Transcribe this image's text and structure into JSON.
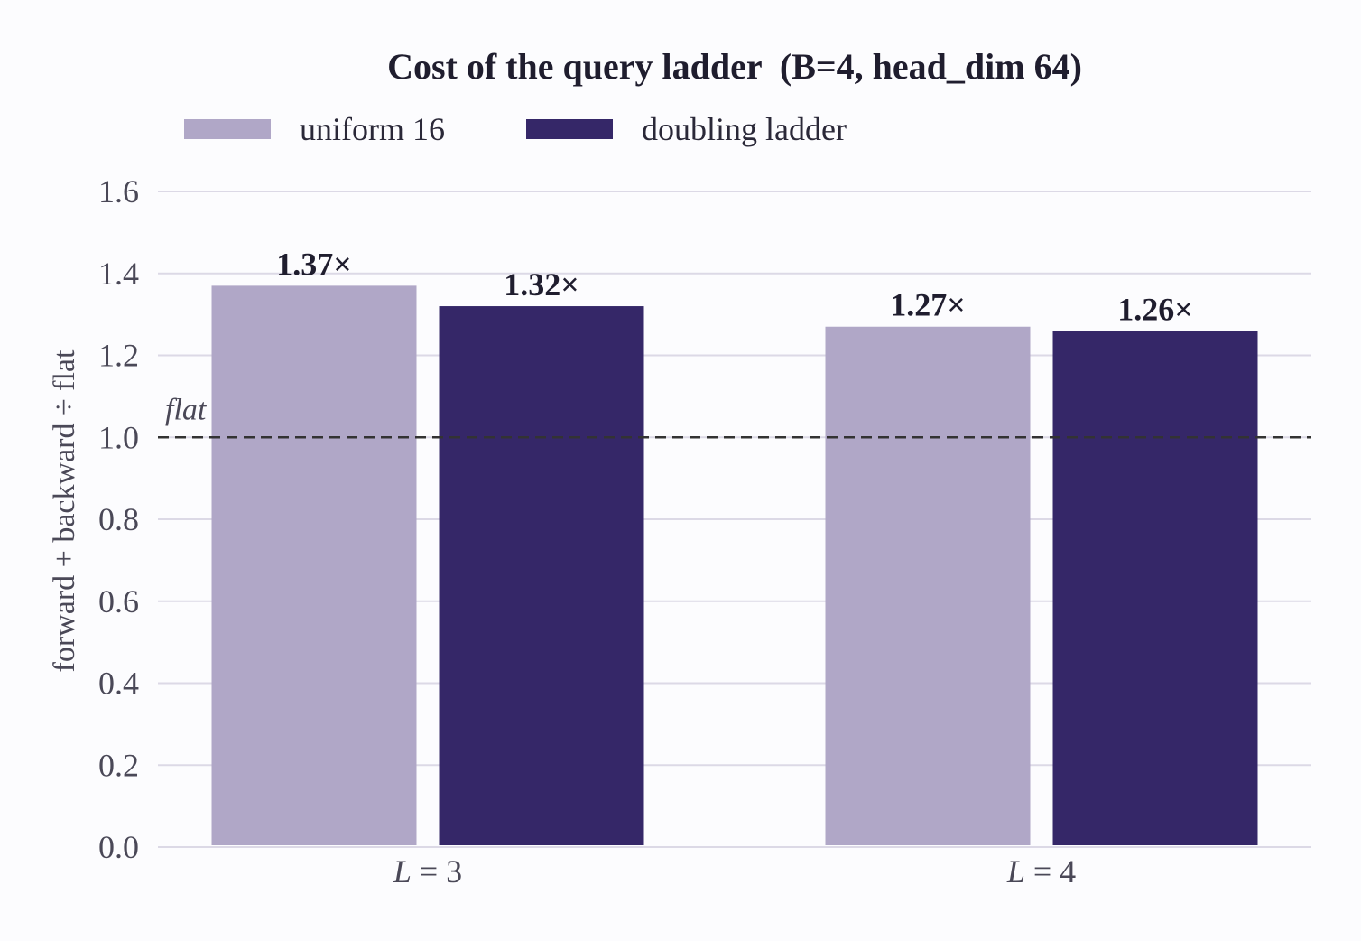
{
  "chart_data": {
    "type": "bar",
    "title": "Cost of the query ladder  (B=4, head_dim 64)",
    "xlabel": "",
    "ylabel": "forward + backward ÷ flat",
    "categories": [
      "L = 3",
      "L = 4"
    ],
    "category_parts": [
      {
        "var": "L",
        "eq": "= 3"
      },
      {
        "var": "L",
        "eq": "= 4"
      }
    ],
    "series": [
      {
        "name": "uniform 16",
        "color": "#b0a7c7",
        "values": [
          1.37,
          1.27
        ],
        "labels": [
          "1.37×",
          "1.27×"
        ]
      },
      {
        "name": "doubling ladder",
        "color": "#352768",
        "values": [
          1.32,
          1.26
        ],
        "labels": [
          "1.32×",
          "1.26×"
        ]
      }
    ],
    "ylim": [
      0,
      1.6
    ],
    "yticks": [
      0.0,
      0.2,
      0.4,
      0.6,
      0.8,
      1.0,
      1.2,
      1.4,
      1.6
    ],
    "ytick_labels": [
      "0.0",
      "0.2",
      "0.4",
      "0.6",
      "0.8",
      "1.0",
      "1.2",
      "1.4",
      "1.6"
    ],
    "reference_line": {
      "y": 1.0,
      "label": "flat",
      "style": "dashed"
    },
    "grid": true,
    "legend": "top-left, horizontal"
  },
  "colors": {
    "background": "#fcfcfe",
    "grid": "#dcd9e6",
    "text": "#1f1d2e",
    "muted_text": "#4a4857",
    "reference_line": "#333333"
  }
}
